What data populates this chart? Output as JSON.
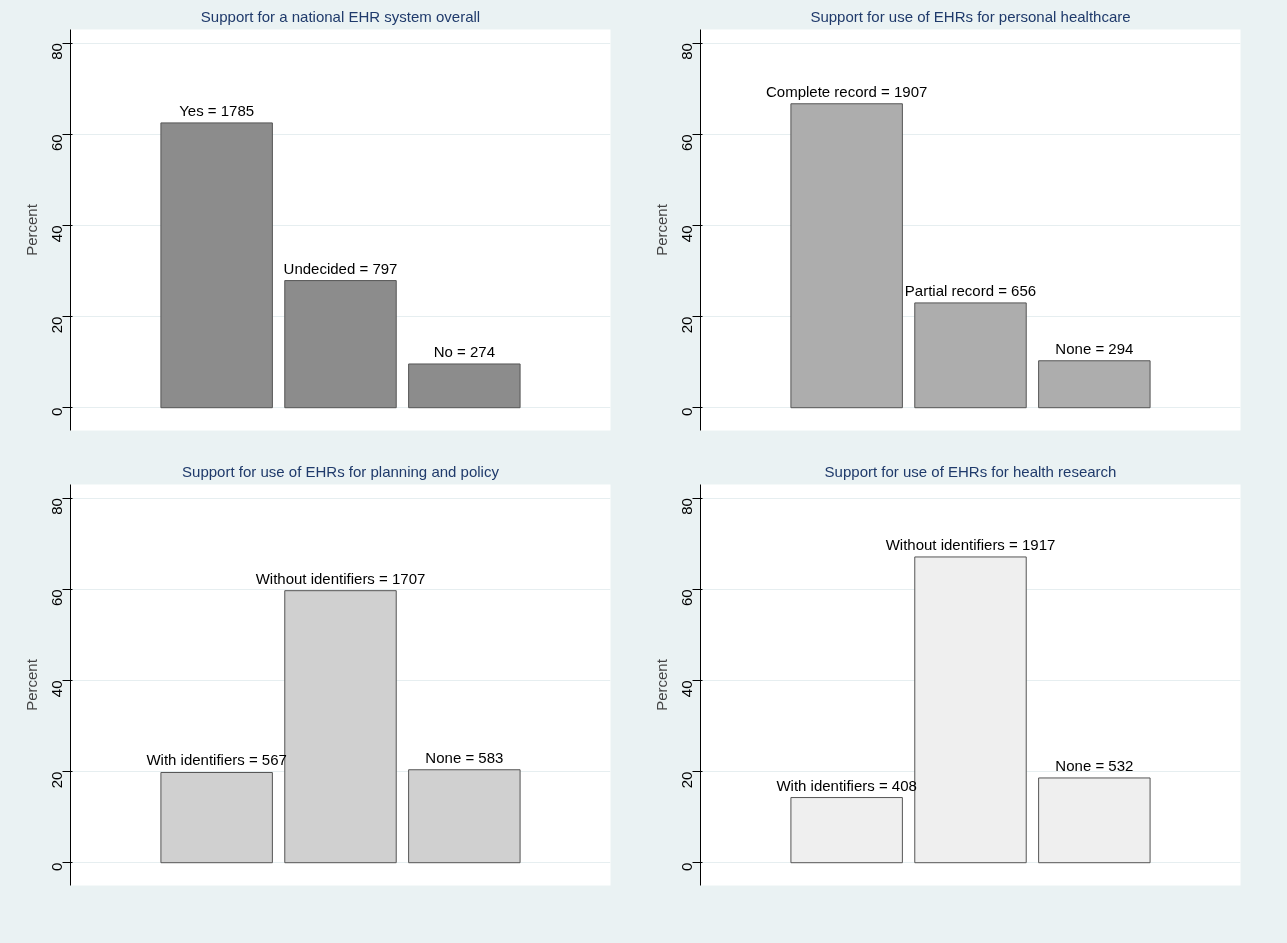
{
  "chart_data": [
    {
      "type": "bar",
      "title": "Support for a national EHR system overall",
      "ylabel": "Percent",
      "categories": [
        null,
        null,
        null
      ],
      "values": [
        62.5,
        27.9,
        9.6
      ],
      "annotations": [
        "Yes = 1785",
        "Undecided = 797",
        "No = 274"
      ],
      "color": "#8c8c8c",
      "ylim": [
        -5,
        83
      ],
      "yticks": [
        0,
        20,
        40,
        60,
        80
      ],
      "grid": "y",
      "tick_labels": "y"
    },
    {
      "type": "bar",
      "title": "Support for use of EHRs for personal healthcare",
      "ylabel": "Percent",
      "categories": [
        null,
        null,
        null
      ],
      "values": [
        66.7,
        23.0,
        10.3
      ],
      "annotations": [
        "Complete record = 1907",
        "Partial record = 656",
        "None = 294"
      ],
      "color": "#adadad",
      "ylim": [
        -5,
        83
      ],
      "yticks": [
        0,
        20,
        40,
        60,
        80
      ],
      "grid": "y",
      "tick_labels": "y"
    },
    {
      "type": "bar",
      "title": "Support for use of EHRs for planning and policy",
      "ylabel": "Percent",
      "categories": [
        null,
        null,
        null
      ],
      "values": [
        19.8,
        59.7,
        20.4
      ],
      "annotations": [
        "With identifiers = 567",
        "Without identifiers = 1707",
        "None = 583"
      ],
      "color": "#d0d0d0",
      "ylim": [
        -5,
        83
      ],
      "yticks": [
        0,
        20,
        40,
        60,
        80
      ],
      "grid": "y",
      "tick_labels": "y"
    },
    {
      "type": "bar",
      "title": "Support for use of EHRs for health research",
      "ylabel": "Percent",
      "categories": [
        null,
        null,
        null
      ],
      "values": [
        14.3,
        67.1,
        18.6
      ],
      "annotations": [
        "With identifiers = 408",
        "Without identifiers = 1917",
        "None = 532"
      ],
      "color": "#efefef",
      "ylim": [
        -5,
        83
      ],
      "yticks": [
        0,
        20,
        40,
        60,
        80
      ],
      "grid": "y",
      "tick_labels": "y"
    }
  ]
}
